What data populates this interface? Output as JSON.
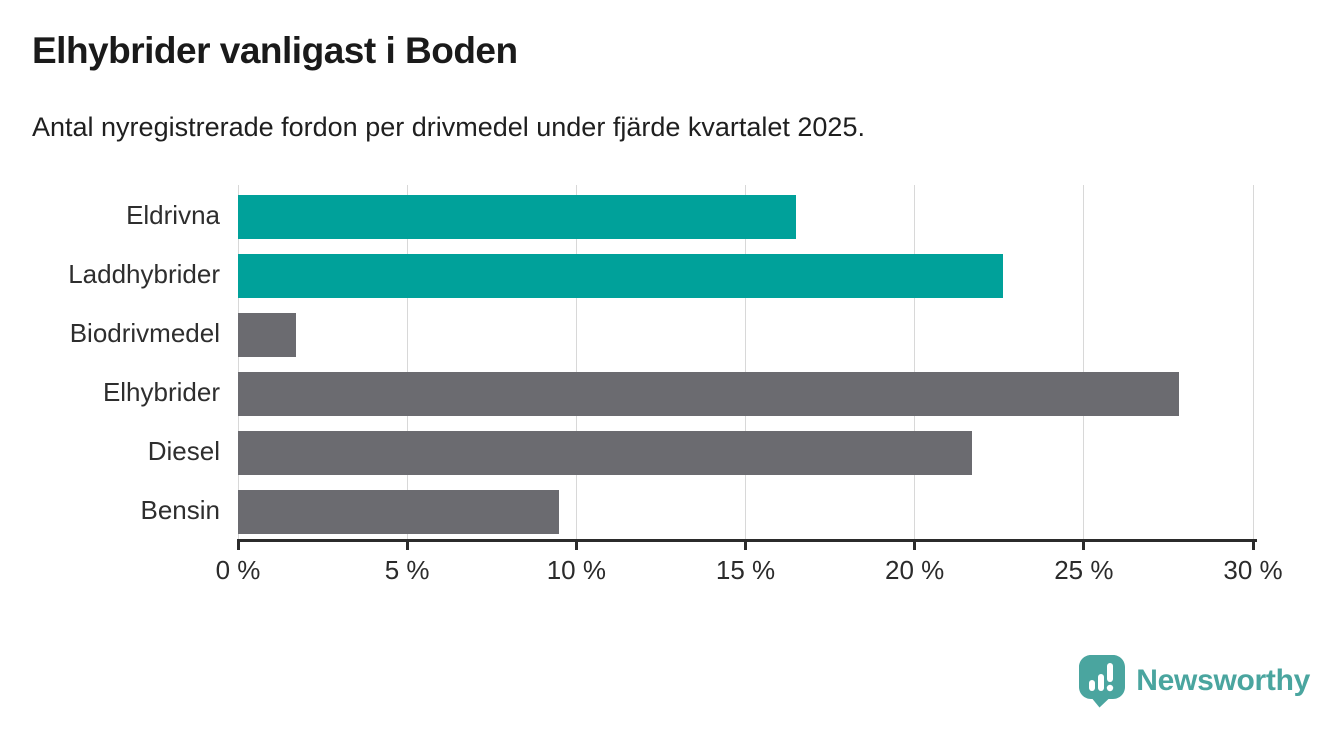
{
  "header": {
    "title": "Elhybrider vanligast i Boden",
    "subtitle": "Antal nyregistrerade fordon per drivmedel under fjärde kvartalet 2025."
  },
  "chart_data": {
    "type": "bar",
    "orientation": "horizontal",
    "title": "Elhybrider vanligast i Boden",
    "subtitle": "Antal nyregistrerade fordon per drivmedel under fjärde kvartalet 2025.",
    "categories": [
      "Eldrivna",
      "Laddhybrider",
      "Biodrivmedel",
      "Elhybrider",
      "Diesel",
      "Bensin"
    ],
    "values": [
      16.5,
      22.6,
      1.7,
      27.8,
      21.7,
      9.5
    ],
    "unit": "%",
    "bar_colors": [
      "#00a19a",
      "#00a19a",
      "#6b6b70",
      "#6b6b70",
      "#6b6b70",
      "#6b6b70"
    ],
    "xlabel": "",
    "ylabel": "",
    "xlim": [
      0,
      30
    ],
    "x_ticks": [
      0,
      5,
      10,
      15,
      20,
      25,
      30
    ],
    "x_tick_labels": [
      "0 %",
      "5 %",
      "10 %",
      "15 %",
      "20 %",
      "25 %",
      "30 %"
    ],
    "grid": true,
    "legend": false
  },
  "colors": {
    "highlight_bar": "#00a19a",
    "default_bar": "#6b6b70",
    "axis": "#2b2b2b",
    "gridline": "#d8d8d8",
    "title_text": "#1a1a1a",
    "logo_teal": "#4aa59f"
  },
  "branding": {
    "logo_text": "Newsworthy",
    "logo_icon": "bar-chart-speech-bubble-icon"
  }
}
